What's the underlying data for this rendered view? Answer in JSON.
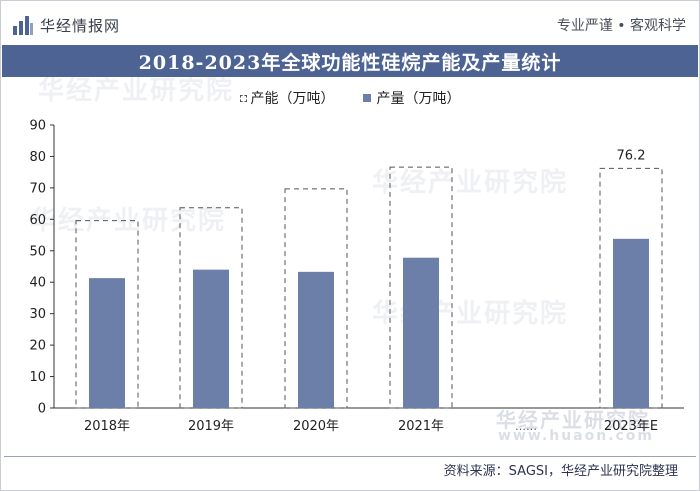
{
  "header": {
    "brand_name": "华经情报网",
    "slogan": "专业严谨 • 客观科学"
  },
  "title": "2018-2023年全球功能性硅烷产能及产量统计",
  "chart_data": {
    "type": "bar",
    "categories": [
      "2018年",
      "2019年",
      "2020年",
      "2021年",
      "2023年E"
    ],
    "series": [
      {
        "name": "产能（万吨）",
        "values": [
          59.6,
          63.7,
          69.7,
          76.6,
          76.2
        ],
        "style": "dashed-outline"
      },
      {
        "name": "产量（万吨）",
        "values": [
          41.3,
          44.0,
          43.3,
          47.8,
          53.8
        ],
        "style": "solid",
        "color": "#6b7fa8"
      }
    ],
    "data_labels": [
      {
        "category": "2023年E",
        "value": "76.2"
      }
    ],
    "ylim": [
      0,
      90
    ],
    "yticks": [
      "0",
      "10",
      "20",
      "30",
      "40",
      "50",
      "60",
      "70",
      "80",
      "90"
    ],
    "grid": false,
    "legend_position": "top-center",
    "broken_axis_marker": "……"
  },
  "footer": {
    "source": "资料来源：SAGSI，华经产业研究院整理"
  },
  "watermarks": [
    "华经产业研究院",
    "华经产业研究院",
    "华经产业研究院",
    "华经产业研究院",
    "www.huaon.com"
  ],
  "colors": {
    "title_bar": "#4d6394",
    "bar_fill": "#6b7fa8",
    "capacity_outline": "#555555"
  }
}
